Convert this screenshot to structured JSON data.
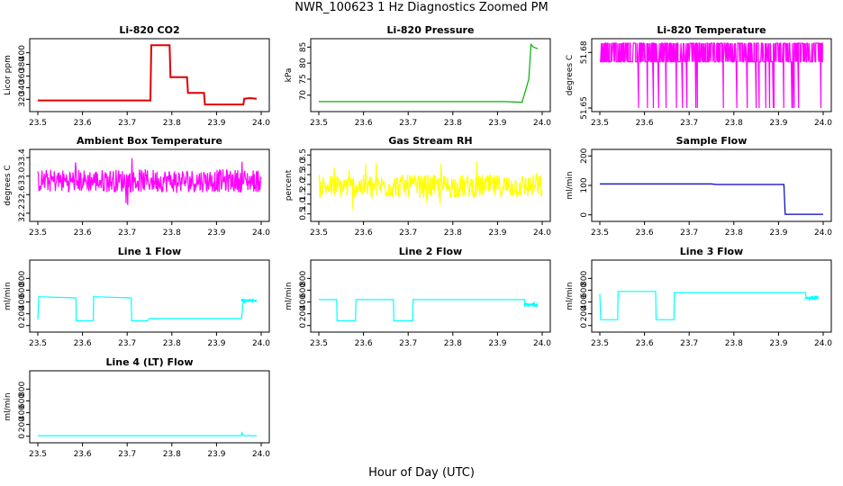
{
  "figure": {
    "title": "NWR_100623  1 Hz Diagnostics Zoomed PM",
    "xlabel": "Hour of Day (UTC)"
  },
  "chart_data": [
    {
      "id": "co2",
      "type": "line",
      "title": "Li-820 CO2",
      "ylabel": "Licor ppm",
      "color": "#e00000",
      "xlim": [
        23.5,
        24.0
      ],
      "ylim": [
        305,
        418
      ],
      "xticks": [
        "23.5",
        "23.6",
        "23.7",
        "23.8",
        "23.9",
        "24.0"
      ],
      "yticks": [
        "320",
        "340",
        "360",
        "380",
        "400"
      ],
      "series": [
        {
          "x": [
            23.5,
            23.74,
            23.752,
            23.754,
            23.795,
            23.797,
            23.834,
            23.836,
            23.872,
            23.874,
            23.96,
            23.962,
            23.975,
            23.99
          ],
          "y": [
            318,
            318,
            318,
            413,
            413,
            358,
            358,
            331,
            331,
            311,
            311,
            321,
            322,
            321
          ]
        }
      ]
    },
    {
      "id": "pressure",
      "type": "line",
      "title": "Li-820 Pressure",
      "ylabel": "kPa",
      "color": "#00b000",
      "xlim": [
        23.5,
        24.0
      ],
      "ylim": [
        66,
        86.5
      ],
      "xticks": [
        "23.5",
        "23.6",
        "23.7",
        "23.8",
        "23.9",
        "24.0"
      ],
      "yticks": [
        "70",
        "75",
        "80",
        "85"
      ],
      "series": [
        {
          "x": [
            23.5,
            23.915,
            23.955,
            23.97,
            23.975,
            23.98,
            23.99
          ],
          "y": [
            68,
            68,
            67.8,
            75,
            85.8,
            85,
            84.5
          ]
        }
      ]
    },
    {
      "id": "temperature",
      "type": "line",
      "title": "Li-820 Temperature",
      "ylabel": "degrees C",
      "color": "#ff00ff",
      "xlim": [
        23.5,
        24.0
      ],
      "ylim": [
        51.65,
        51.6855
      ],
      "xticks": [
        "23.5",
        "23.6",
        "23.7",
        "23.8",
        "23.9",
        "24.0"
      ],
      "yticks": [
        "51.65",
        "51.68"
      ],
      "series": [
        {
          "x": [
            23.5,
            24.0
          ],
          "y": [
            51.685,
            51.675
          ],
          "low": 51.65,
          "noise": "binary-switching"
        }
      ]
    },
    {
      "id": "ambient",
      "type": "line",
      "title": "Ambient Box Temperature",
      "ylabel": "degrees C",
      "color": "#ff00ff",
      "xlim": [
        23.5,
        24.0
      ],
      "ylim": [
        32.1,
        33.5
      ],
      "xticks": [
        "23.5",
        "23.6",
        "23.7",
        "23.8",
        "23.9",
        "24.0"
      ],
      "yticks": [
        "32.2",
        "32.6",
        "33.0",
        "33.4"
      ],
      "series": [
        {
          "x": [
            23.5,
            24.0
          ],
          "y": [
            32.9,
            32.9
          ],
          "noise": 0.25
        }
      ]
    },
    {
      "id": "rh",
      "type": "line",
      "title": "Gas Stream RH",
      "ylabel": "percent",
      "color": "#ffff00",
      "xlim": [
        23.5,
        24.0
      ],
      "ylim": [
        0.3,
        3.6
      ],
      "xticks": [
        "23.5",
        "23.6",
        "23.7",
        "23.8",
        "23.9",
        "24.0"
      ],
      "yticks": [
        "0.5",
        "1.0",
        "1.5",
        "2.0",
        "2.5",
        "3.0",
        "3.5"
      ],
      "series": [
        {
          "x": [
            23.5,
            24.0
          ],
          "y": [
            1.9,
            1.9
          ],
          "noise": 0.6
        }
      ]
    },
    {
      "id": "sample",
      "type": "line",
      "title": "Sample Flow",
      "ylabel": "ml/min",
      "color": "#0000c0",
      "xlim": [
        23.5,
        24.0
      ],
      "ylim": [
        -10,
        210
      ],
      "xticks": [
        "23.5",
        "23.6",
        "23.7",
        "23.8",
        "23.9",
        "24.0"
      ],
      "yticks": [
        "0",
        "100",
        "200"
      ],
      "series": [
        {
          "x": [
            23.5,
            23.75,
            23.76,
            23.912,
            23.915,
            24.0
          ],
          "y": [
            105,
            105,
            103,
            103,
            2,
            2
          ]
        }
      ]
    },
    {
      "id": "line1",
      "type": "line",
      "title": "Line 1 Flow",
      "ylabel": "ml/min",
      "color": "#00ffff",
      "xlim": [
        23.5,
        24.0
      ],
      "ylim": [
        -50,
        1050
      ],
      "xticks": [
        "23.5",
        "23.6",
        "23.7",
        "23.8",
        "23.9",
        "24.0"
      ],
      "yticks": [
        "0",
        "200",
        "400",
        "600",
        "800"
      ],
      "series": [
        {
          "x": [
            23.5,
            23.502,
            23.585,
            23.586,
            23.624,
            23.625,
            23.709,
            23.71,
            23.745,
            23.75,
            23.956,
            23.96,
            23.99
          ],
          "y": [
            100,
            490,
            470,
            80,
            80,
            490,
            470,
            80,
            80,
            120,
            120,
            430,
            420
          ]
        }
      ]
    },
    {
      "id": "line2",
      "type": "line",
      "title": "Line 2 Flow",
      "ylabel": "ml/min",
      "color": "#00ffff",
      "xlim": [
        23.5,
        24.0
      ],
      "ylim": [
        -50,
        1050
      ],
      "xticks": [
        "23.5",
        "23.6",
        "23.7",
        "23.8",
        "23.9",
        "24.0"
      ],
      "yticks": [
        "0",
        "200",
        "400",
        "600",
        "800"
      ],
      "series": [
        {
          "x": [
            23.5,
            23.54,
            23.541,
            23.582,
            23.583,
            23.667,
            23.668,
            23.71,
            23.711,
            23.96,
            23.962,
            23.99
          ],
          "y": [
            440,
            440,
            80,
            80,
            440,
            440,
            80,
            80,
            440,
            440,
            350,
            350
          ]
        }
      ]
    },
    {
      "id": "line3",
      "type": "line",
      "title": "Line 3 Flow",
      "ylabel": "ml/min",
      "color": "#00ffff",
      "xlim": [
        23.5,
        24.0
      ],
      "ylim": [
        -50,
        1050
      ],
      "xticks": [
        "23.5",
        "23.6",
        "23.7",
        "23.8",
        "23.9",
        "24.0"
      ],
      "yticks": [
        "0",
        "200",
        "400",
        "600",
        "800"
      ],
      "series": [
        {
          "x": [
            23.5,
            23.502,
            23.54,
            23.541,
            23.625,
            23.626,
            23.666,
            23.667,
            23.96,
            23.962,
            23.99
          ],
          "y": [
            540,
            100,
            100,
            580,
            580,
            100,
            100,
            560,
            560,
            470,
            470
          ]
        }
      ]
    },
    {
      "id": "line4",
      "type": "line",
      "title": "Line 4 (LT) Flow",
      "ylabel": "ml/min",
      "color": "#00ffff",
      "xlim": [
        23.5,
        24.0
      ],
      "ylim": [
        -50,
        1050
      ],
      "xticks": [
        "23.5",
        "23.6",
        "23.7",
        "23.8",
        "23.9",
        "24.0"
      ],
      "yticks": [
        "0",
        "200",
        "400",
        "600",
        "800"
      ],
      "series": [
        {
          "x": [
            23.5,
            23.955,
            23.957,
            23.96,
            23.962,
            23.99
          ],
          "y": [
            10,
            10,
            60,
            10,
            10,
            10
          ]
        }
      ]
    }
  ]
}
